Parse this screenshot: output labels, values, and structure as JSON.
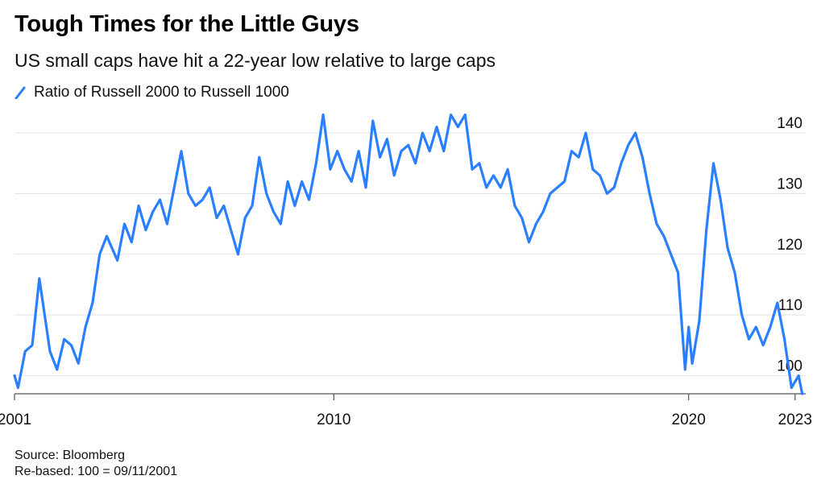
{
  "header": {
    "title": "Tough Times for the Little Guys",
    "subtitle": "US small caps have hit a 22-year low relative to large caps"
  },
  "legend": {
    "label": "Ratio of Russell 2000 to Russell 1000",
    "color": "#2a7fff"
  },
  "footer": {
    "source": "Source: Bloomberg",
    "note": "Re-based: 100 = 09/11/2001"
  },
  "chart_data": {
    "type": "line",
    "title": "Tough Times for the Little Guys",
    "subtitle": "US small caps have hit a 22-year low relative to large caps",
    "xlabel": "",
    "ylabel": "",
    "xlim": [
      2001.0,
      2023.3
    ],
    "ylim": [
      97,
      144
    ],
    "x_ticks": [
      {
        "value": 2001,
        "label": "2001"
      },
      {
        "value": 2010,
        "label": "2010"
      },
      {
        "value": 2020,
        "label": "2020"
      },
      {
        "value": 2023,
        "label": "2023"
      }
    ],
    "y_ticks": [
      100,
      110,
      120,
      130,
      140
    ],
    "grid": true,
    "legend_position": "top-left",
    "series": [
      {
        "name": "Ratio of Russell 2000 to Russell 1000",
        "color": "#2a7fff",
        "x": [
          2001.0,
          2001.1,
          2001.3,
          2001.5,
          2001.7,
          2001.9,
          2002.0,
          2002.2,
          2002.4,
          2002.6,
          2002.8,
          2003.0,
          2003.2,
          2003.4,
          2003.6,
          2003.9,
          2004.1,
          2004.3,
          2004.5,
          2004.7,
          2004.9,
          2005.1,
          2005.3,
          2005.5,
          2005.7,
          2005.9,
          2006.1,
          2006.3,
          2006.5,
          2006.7,
          2006.9,
          2007.1,
          2007.3,
          2007.5,
          2007.7,
          2007.9,
          2008.1,
          2008.3,
          2008.5,
          2008.7,
          2008.9,
          2009.1,
          2009.3,
          2009.5,
          2009.7,
          2009.9,
          2010.1,
          2010.3,
          2010.5,
          2010.7,
          2010.9,
          2011.1,
          2011.3,
          2011.5,
          2011.7,
          2011.9,
          2012.1,
          2012.3,
          2012.5,
          2012.7,
          2012.9,
          2013.1,
          2013.3,
          2013.5,
          2013.7,
          2013.9,
          2014.1,
          2014.3,
          2014.5,
          2014.7,
          2014.9,
          2015.1,
          2015.3,
          2015.5,
          2015.7,
          2015.9,
          2016.1,
          2016.3,
          2016.5,
          2016.7,
          2016.9,
          2017.1,
          2017.3,
          2017.5,
          2017.7,
          2017.9,
          2018.1,
          2018.3,
          2018.5,
          2018.7,
          2018.9,
          2019.1,
          2019.3,
          2019.5,
          2019.7,
          2019.9,
          2020.0,
          2020.1,
          2020.3,
          2020.5,
          2020.7,
          2020.9,
          2021.1,
          2021.3,
          2021.5,
          2021.7,
          2021.9,
          2022.1,
          2022.3,
          2022.5,
          2022.7,
          2022.9,
          2023.1,
          2023.2
        ],
        "values": [
          100,
          98,
          104,
          105,
          116,
          108,
          104,
          101,
          106,
          105,
          102,
          108,
          112,
          120,
          123,
          119,
          125,
          122,
          128,
          124,
          127,
          129,
          125,
          131,
          137,
          130,
          128,
          129,
          131,
          126,
          128,
          124,
          120,
          126,
          128,
          136,
          130,
          127,
          125,
          132,
          128,
          132,
          129,
          135,
          143,
          134,
          137,
          134,
          132,
          137,
          131,
          142,
          136,
          139,
          133,
          137,
          138,
          135,
          140,
          137,
          141,
          137,
          143,
          141,
          143,
          134,
          135,
          131,
          133,
          131,
          134,
          128,
          126,
          122,
          125,
          127,
          130,
          131,
          132,
          137,
          136,
          140,
          134,
          133,
          130,
          131,
          135,
          138,
          140,
          136,
          130,
          125,
          123,
          120,
          117,
          101,
          108,
          102,
          109,
          124,
          135,
          129,
          121,
          117,
          110,
          106,
          108,
          105,
          108,
          112,
          106,
          98,
          100,
          97
        ]
      }
    ]
  }
}
